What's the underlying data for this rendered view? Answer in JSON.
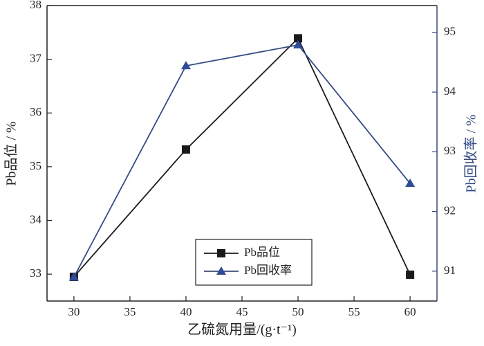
{
  "chart_data": {
    "type": "line",
    "x": [
      30,
      40,
      50,
      60
    ],
    "xlim": [
      27.6,
      62.4
    ],
    "xticks": [
      30,
      35,
      40,
      45,
      50,
      55,
      60
    ],
    "ylim": [
      32.5,
      38
    ],
    "yticks": [
      33,
      34,
      35,
      36,
      37,
      38
    ],
    "y2lim": [
      90.5,
      95.45
    ],
    "y2ticks": [
      91,
      92,
      93,
      94,
      95
    ],
    "xlabel": "乙硫氮用量/(g·t⁻¹)",
    "ylabel": "Pb品位 / %",
    "y2label": "Pb回收率 / %",
    "legend": "bottom-center",
    "series": [
      {
        "name": "Pb品位",
        "color": "#1a1a1a",
        "marker": "square",
        "values": [
          32.95,
          35.32,
          37.39,
          32.99
        ]
      },
      {
        "name": "Pb回收率",
        "color": "#2e4a9a",
        "marker": "triangle",
        "axis": "y2",
        "values": [
          90.9,
          94.44,
          94.79,
          92.47
        ]
      }
    ]
  }
}
